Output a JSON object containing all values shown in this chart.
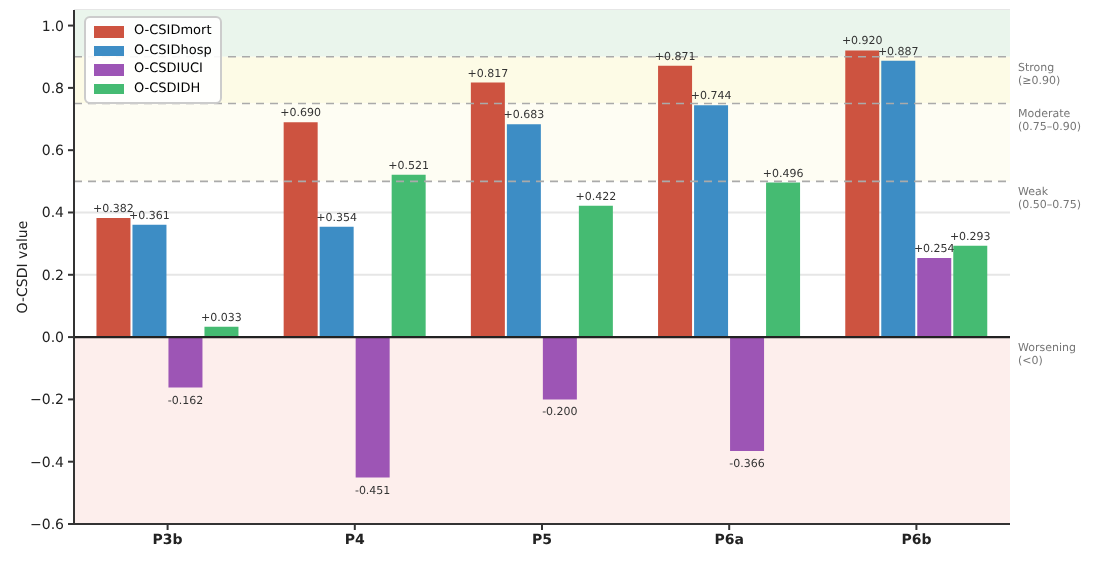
{
  "chart_data": {
    "type": "bar",
    "ylabel": "O-CSDI value",
    "categories": [
      "P3b",
      "P4",
      "P5",
      "P6a",
      "P6b"
    ],
    "series": [
      {
        "name": "O-CSIDmort",
        "color": "#cd5340",
        "values": [
          0.382,
          0.69,
          0.817,
          0.871,
          0.92
        ],
        "value_labels": [
          "+0.382",
          "+0.690",
          "+0.817",
          "+0.871",
          "+0.920"
        ]
      },
      {
        "name": "O-CSIDhosp",
        "color": "#3d8dc5",
        "values": [
          0.361,
          0.354,
          0.683,
          0.744,
          0.887
        ],
        "value_labels": [
          "+0.361",
          "+0.354",
          "+0.683",
          "+0.744",
          "+0.887"
        ]
      },
      {
        "name": "O-CSDIUCI",
        "color": "#9d55b5",
        "values": [
          -0.162,
          -0.451,
          -0.2,
          -0.366,
          0.254
        ],
        "value_labels": [
          "-0.162",
          "-0.451",
          "-0.200",
          "-0.366",
          "+0.254"
        ]
      },
      {
        "name": "O-CSDIDH",
        "color": "#45bb72",
        "values": [
          0.033,
          0.521,
          0.422,
          0.496,
          0.293
        ],
        "value_labels": [
          "+0.033",
          "+0.521",
          "+0.422",
          "+0.496",
          "+0.293"
        ]
      }
    ],
    "ylim": [
      -0.6,
      1.05
    ],
    "yticks": [
      {
        "value": -0.6,
        "label": "−0.6"
      },
      {
        "value": -0.4,
        "label": "−0.4"
      },
      {
        "value": -0.2,
        "label": "−0.2"
      },
      {
        "value": 0,
        "label": "0.0"
      },
      {
        "value": 0.2,
        "label": "0.2"
      },
      {
        "value": 0.4,
        "label": "0.4"
      },
      {
        "value": 0.6,
        "label": "0.6"
      },
      {
        "value": 0.8,
        "label": "0.8"
      },
      {
        "value": 1,
        "label": "1.0"
      }
    ],
    "grid": "y",
    "legend": "top left",
    "bands": [
      {
        "axis": "y",
        "from": 0.9,
        "to": 1.05,
        "label": "Strong (≥0.90)",
        "color": "#eaf5ec"
      },
      {
        "axis": "y",
        "from": 0.75,
        "to": 0.9,
        "label": "Moderate (0.75–0.90)",
        "color": "#fdfbe6"
      },
      {
        "axis": "y",
        "from": 0.5,
        "to": 0.75,
        "label": "Weak (0.50–0.75)",
        "color": "#fefdf3"
      },
      {
        "axis": "y",
        "from": -0.6,
        "to": 0,
        "label": "Worsening (<0)",
        "color": "#fdeeec"
      }
    ],
    "ref_lines": [
      {
        "axis": "y",
        "value": 0.9,
        "color": "#aaaaaa",
        "line_style": "dashed"
      },
      {
        "axis": "y",
        "value": 0.75,
        "color": "#aaaaaa",
        "line_style": "dashed"
      },
      {
        "axis": "y",
        "value": 0.5,
        "color": "#aaaaaa",
        "line_style": "dashed"
      },
      {
        "axis": "y",
        "value": 0,
        "color": "#222222",
        "line_style": "solid"
      }
    ]
  }
}
